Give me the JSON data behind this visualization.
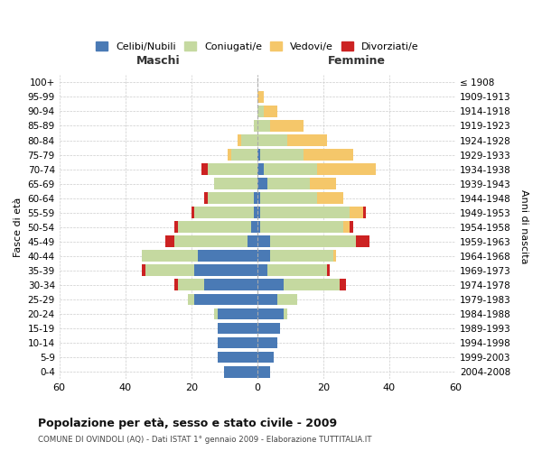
{
  "age_groups": [
    "0-4",
    "5-9",
    "10-14",
    "15-19",
    "20-24",
    "25-29",
    "30-34",
    "35-39",
    "40-44",
    "45-49",
    "50-54",
    "55-59",
    "60-64",
    "65-69",
    "70-74",
    "75-79",
    "80-84",
    "85-89",
    "90-94",
    "95-99",
    "100+"
  ],
  "birth_years": [
    "2004-2008",
    "1999-2003",
    "1994-1998",
    "1989-1993",
    "1984-1988",
    "1979-1983",
    "1974-1978",
    "1969-1973",
    "1964-1968",
    "1959-1963",
    "1954-1958",
    "1949-1953",
    "1944-1948",
    "1939-1943",
    "1934-1938",
    "1929-1933",
    "1924-1928",
    "1919-1923",
    "1914-1918",
    "1909-1913",
    "≤ 1908"
  ],
  "colors": {
    "celibi": "#4a7ab5",
    "coniugati": "#c5d9a0",
    "vedovi": "#f5c76a",
    "divorziati": "#cc2222"
  },
  "maschi": {
    "celibi": [
      10,
      12,
      12,
      12,
      12,
      19,
      16,
      19,
      18,
      3,
      2,
      1,
      1,
      0,
      0,
      0,
      0,
      0,
      0,
      0,
      0
    ],
    "coniugati": [
      0,
      0,
      0,
      0,
      1,
      2,
      8,
      15,
      17,
      22,
      22,
      18,
      14,
      13,
      15,
      8,
      5,
      1,
      0,
      0,
      0
    ],
    "vedovi": [
      0,
      0,
      0,
      0,
      0,
      0,
      0,
      0,
      0,
      0,
      0,
      0,
      0,
      0,
      0,
      1,
      1,
      0,
      0,
      0,
      0
    ],
    "divorziati": [
      0,
      0,
      0,
      0,
      0,
      0,
      1,
      1,
      0,
      3,
      1,
      1,
      1,
      0,
      2,
      0,
      0,
      0,
      0,
      0,
      0
    ]
  },
  "femmine": {
    "celibi": [
      4,
      5,
      6,
      7,
      8,
      6,
      8,
      3,
      4,
      4,
      1,
      1,
      1,
      3,
      2,
      1,
      0,
      0,
      0,
      0,
      0
    ],
    "coniugati": [
      0,
      0,
      0,
      0,
      1,
      6,
      17,
      18,
      19,
      26,
      25,
      27,
      17,
      13,
      16,
      13,
      9,
      4,
      2,
      0,
      0
    ],
    "vedovi": [
      0,
      0,
      0,
      0,
      0,
      0,
      0,
      0,
      1,
      0,
      2,
      4,
      8,
      8,
      18,
      15,
      12,
      10,
      4,
      2,
      0
    ],
    "divorziati": [
      0,
      0,
      0,
      0,
      0,
      0,
      2,
      1,
      0,
      4,
      1,
      1,
      0,
      0,
      0,
      0,
      0,
      0,
      0,
      0,
      0
    ]
  },
  "title": "Popolazione per età, sesso e stato civile - 2009",
  "subtitle": "COMUNE DI OVINDOLI (AQ) - Dati ISTAT 1° gennaio 2009 - Elaborazione TUTTITALIA.IT",
  "xlabel_left": "Maschi",
  "xlabel_right": "Femmine",
  "ylabel_left": "Fasce di età",
  "ylabel_right": "Anni di nascita",
  "xlim": 60,
  "legend_labels": [
    "Celibi/Nubili",
    "Coniugati/e",
    "Vedovi/e",
    "Divorziati/e"
  ],
  "background_color": "#ffffff",
  "grid_color": "#cccccc"
}
